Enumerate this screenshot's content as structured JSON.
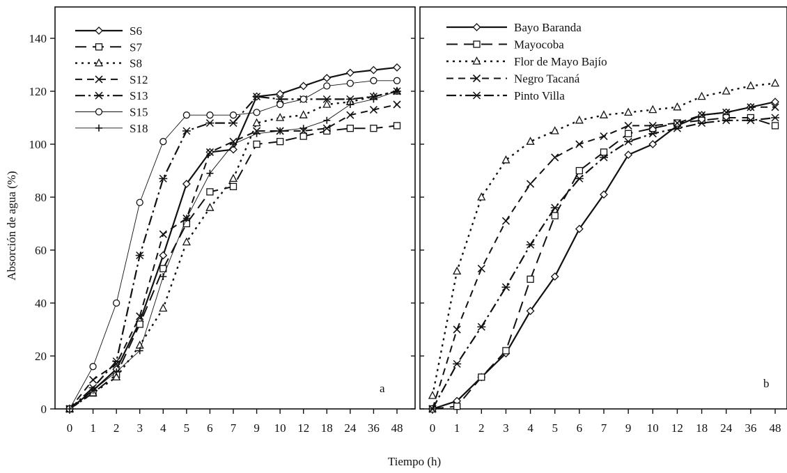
{
  "figure": {
    "xlabel": "Tiempo (h)",
    "ylabel": "Absorción de agua (%)"
  },
  "chart_data": [
    {
      "type": "line",
      "panel": "a",
      "categories": [
        "0",
        "1",
        "2",
        "3",
        "4",
        "5",
        "6",
        "7",
        "9",
        "10",
        "12",
        "18",
        "24",
        "36",
        "48"
      ],
      "ylim": [
        0,
        140
      ],
      "yticks": [
        0,
        20,
        40,
        60,
        80,
        100,
        120,
        140
      ],
      "grid": false,
      "legend_position": "top-left",
      "series": [
        {
          "name": "S6",
          "marker": "diamond",
          "dash": "solid",
          "values": [
            0,
            7,
            15,
            33,
            58,
            85,
            97,
            98,
            118,
            119,
            122,
            125,
            127,
            128,
            129
          ]
        },
        {
          "name": "S7",
          "marker": "square",
          "dash": "longdash",
          "values": [
            0,
            6,
            13,
            32,
            53,
            70,
            82,
            84,
            100,
            101,
            103,
            105,
            106,
            106,
            107
          ]
        },
        {
          "name": "S8",
          "marker": "triangle",
          "dash": "dot",
          "values": [
            0,
            6,
            12,
            24,
            38,
            63,
            76,
            87,
            108,
            110,
            111,
            115,
            116,
            118,
            120
          ]
        },
        {
          "name": "S12",
          "marker": "x",
          "dash": "dash",
          "values": [
            0,
            11,
            17,
            35,
            66,
            72,
            97,
            101,
            105,
            105,
            105,
            106,
            111,
            113,
            115
          ]
        },
        {
          "name": "S13",
          "marker": "star",
          "dash": "dashdot",
          "values": [
            0,
            8,
            18,
            58,
            87,
            105,
            108,
            108,
            118,
            117,
            117,
            117,
            117,
            118,
            120
          ]
        },
        {
          "name": "S15",
          "marker": "circle",
          "dash": "thin",
          "values": [
            0,
            16,
            40,
            78,
            101,
            111,
            111,
            111,
            112,
            115,
            117,
            122,
            123,
            124,
            124
          ]
        },
        {
          "name": "S18",
          "marker": "plus",
          "dash": "thin",
          "values": [
            0,
            7,
            14,
            22,
            50,
            72,
            89,
            100,
            104,
            105,
            106,
            109,
            115,
            117,
            120
          ]
        }
      ],
      "annotation": "a"
    },
    {
      "type": "line",
      "panel": "b",
      "categories": [
        "0",
        "1",
        "2",
        "3",
        "4",
        "5",
        "6",
        "7",
        "9",
        "10",
        "12",
        "18",
        "24",
        "36",
        "48"
      ],
      "ylim": [
        0,
        140
      ],
      "grid": false,
      "legend_position": "top-left",
      "series": [
        {
          "name": "Bayo Baranda",
          "marker": "diamond",
          "dash": "solid",
          "values": [
            0,
            3,
            12,
            21,
            37,
            50,
            68,
            81,
            96,
            100,
            107,
            111,
            112,
            114,
            116
          ]
        },
        {
          "name": "Mayocoba",
          "marker": "square",
          "dash": "longdash",
          "values": [
            0,
            1,
            12,
            22,
            49,
            73,
            90,
            97,
            104,
            106,
            108,
            109,
            110,
            110,
            107
          ]
        },
        {
          "name": "Flor de Mayo Bajío",
          "marker": "triangle",
          "dash": "dot",
          "values": [
            5,
            52,
            80,
            94,
            101,
            105,
            109,
            111,
            112,
            113,
            114,
            118,
            120,
            122,
            123
          ]
        },
        {
          "name": "Negro Tacaná",
          "marker": "x",
          "dash": "dash",
          "values": [
            0,
            30,
            53,
            71,
            85,
            95,
            100,
            103,
            107,
            107,
            108,
            111,
            112,
            114,
            114
          ]
        },
        {
          "name": "Pinto Villa",
          "marker": "star",
          "dash": "dashdot",
          "values": [
            0,
            17,
            31,
            46,
            62,
            76,
            87,
            95,
            101,
            104,
            106,
            108,
            109,
            109,
            110
          ]
        }
      ],
      "annotation": "b"
    }
  ]
}
